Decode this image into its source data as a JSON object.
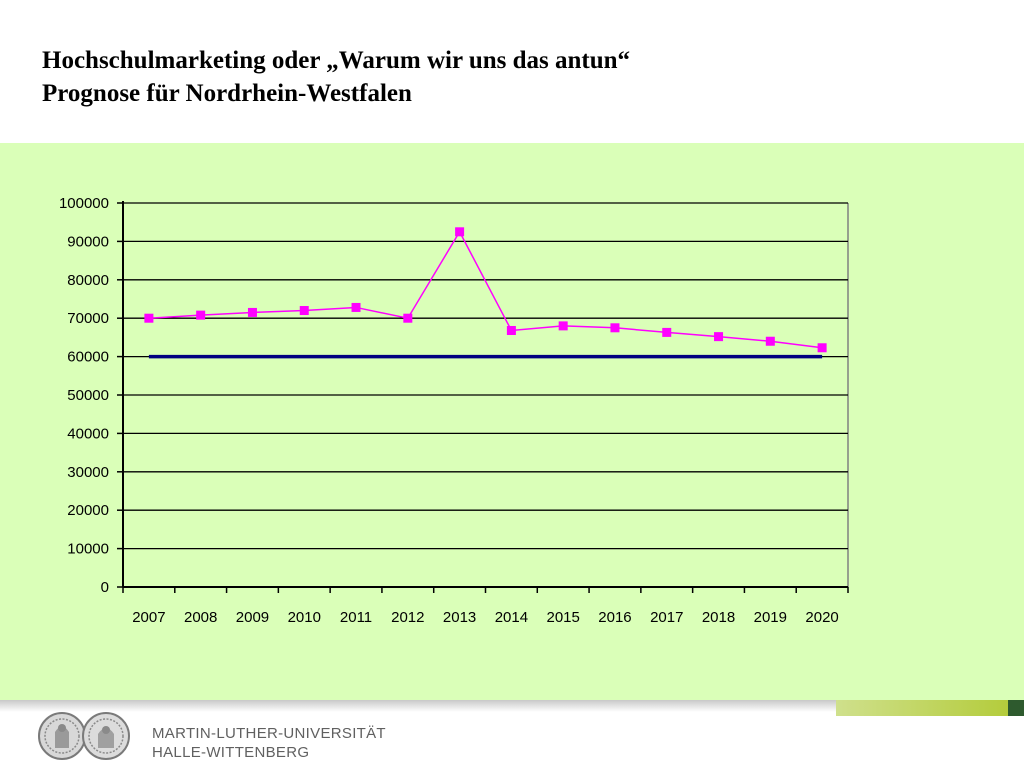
{
  "slide": {
    "title_line1": "Hochschulmarketing oder „Warum wir uns das antun“",
    "title_line2": "Prognose für Nordrhein-Westfalen"
  },
  "footer": {
    "name_line1": "MARTIN-LUTHER-UNIVERSITÄT",
    "name_line2": "HALLE-WITTENBERG"
  },
  "chart_data": {
    "type": "line",
    "x": [
      "2007",
      "2008",
      "2009",
      "2010",
      "2011",
      "2012",
      "2013",
      "2014",
      "2015",
      "2016",
      "2017",
      "2018",
      "2019",
      "2020"
    ],
    "series": [
      {
        "values": [
          70000,
          70800,
          71500,
          72000,
          72800,
          70000,
          92500,
          66800,
          68000,
          67500,
          66300,
          65200,
          64000,
          62300
        ],
        "color": "#ff00ff",
        "marker": "square"
      },
      {
        "values": [
          60000,
          60000,
          60000,
          60000,
          60000,
          60000,
          60000,
          60000,
          60000,
          60000,
          60000,
          60000,
          60000,
          60000
        ],
        "color": "#000080",
        "marker": "none"
      }
    ],
    "ylim": [
      0,
      100000
    ],
    "y_ticks": [
      "0",
      "10000",
      "20000",
      "30000",
      "40000",
      "50000",
      "60000",
      "70000",
      "80000",
      "90000",
      "100000"
    ],
    "grid": true,
    "legend": "none",
    "plot_background": "#daffb8",
    "slide_background": "#ffffff"
  }
}
